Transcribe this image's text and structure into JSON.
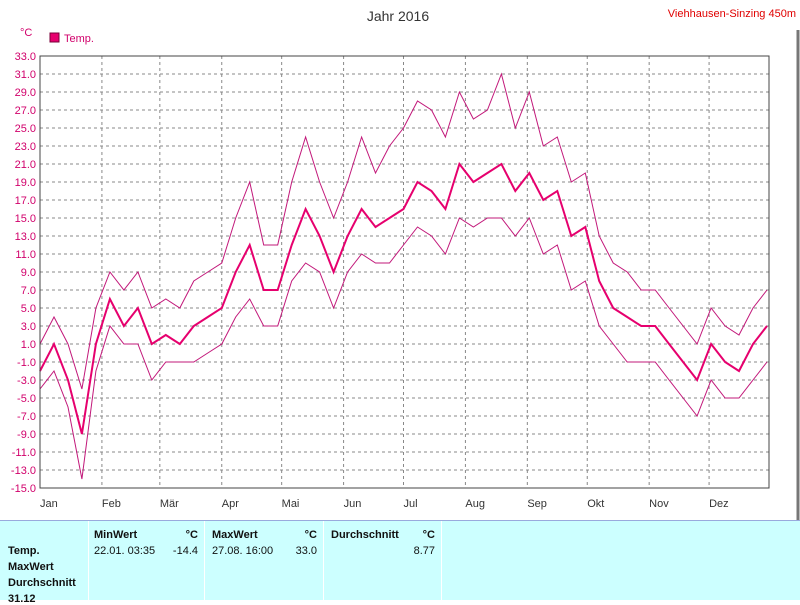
{
  "chart_data": {
    "type": "line",
    "title": "Jahr 2016",
    "station": "Viehhausen-Sinzing 450m",
    "ylabel": "°C",
    "ylim": [
      -15,
      33
    ],
    "yticks": [
      "33.0",
      "31.0",
      "29.0",
      "27.0",
      "25.0",
      "23.0",
      "21.0",
      "19.0",
      "17.0",
      "15.0",
      "13.0",
      "11.0",
      "9.0",
      "7.0",
      "5.0",
      "3.0",
      "1.0",
      "-1.0",
      "-3.0",
      "-5.0",
      "-7.0",
      "-9.0",
      "-11.0",
      "-13.0",
      "-15.0"
    ],
    "months": [
      "Jan",
      "Feb",
      "Mär",
      "Apr",
      "Mai",
      "Jun",
      "Jul",
      "Aug",
      "Sep",
      "Okt",
      "Nov",
      "Dez"
    ],
    "legend": "Temp.",
    "grid": true,
    "colors": {
      "mean": "#e6006e",
      "range": "#c2187a",
      "axis": "#444444"
    },
    "series": [
      {
        "name": "Temp.",
        "day": [
          1,
          8,
          15,
          22,
          29,
          36,
          43,
          50,
          57,
          64,
          71,
          78,
          85,
          92,
          99,
          106,
          113,
          120,
          127,
          134,
          141,
          148,
          155,
          162,
          169,
          176,
          183,
          190,
          197,
          204,
          211,
          218,
          225,
          232,
          239,
          246,
          253,
          260,
          267,
          274,
          281,
          288,
          295,
          302,
          309,
          316,
          323,
          330,
          337,
          344,
          351,
          358,
          365
        ],
        "mean": [
          -2,
          1,
          -3,
          -9,
          1,
          6,
          3,
          5,
          1,
          2,
          1,
          3,
          4,
          5,
          9,
          12,
          7,
          7,
          12,
          16,
          13,
          9,
          13,
          16,
          14,
          15,
          16,
          19,
          18,
          16,
          21,
          19,
          20,
          21,
          18,
          20,
          17,
          18,
          13,
          14,
          8,
          5,
          4,
          3,
          3,
          1,
          -1,
          -3,
          1,
          -1,
          -2,
          1,
          3
        ],
        "min": [
          -4,
          -2,
          -6,
          -14,
          -2,
          3,
          1,
          1,
          -3,
          -1,
          -1,
          -1,
          0,
          1,
          4,
          6,
          3,
          3,
          8,
          10,
          9,
          5,
          9,
          11,
          10,
          10,
          12,
          14,
          13,
          11,
          15,
          14,
          15,
          15,
          13,
          15,
          11,
          12,
          7,
          8,
          3,
          1,
          -1,
          -1,
          -1,
          -3,
          -5,
          -7,
          -3,
          -5,
          -5,
          -3,
          -1
        ],
        "max": [
          1,
          4,
          1,
          -4,
          5,
          9,
          7,
          9,
          5,
          6,
          5,
          8,
          9,
          10,
          15,
          19,
          12,
          12,
          19,
          24,
          19,
          15,
          19,
          24,
          20,
          23,
          25,
          28,
          27,
          24,
          29,
          26,
          27,
          31,
          25,
          29,
          23,
          24,
          19,
          20,
          13,
          10,
          9,
          7,
          7,
          5,
          3,
          1,
          5,
          3,
          2,
          5,
          7
        ]
      }
    ]
  },
  "stats": {
    "headers": {
      "min": "MinWert",
      "max": "MaxWert",
      "avg": "Durchschnitt",
      "unit": "°C"
    },
    "row_labels": [
      "Temp.",
      "MaxWert",
      "Durchschnitt",
      "31.12"
    ],
    "min_time": "22.01.  03:35",
    "min_value": "-14.4",
    "max_time": "27.08.  16:00",
    "max_value": "33.0",
    "avg_value": "8.77"
  }
}
